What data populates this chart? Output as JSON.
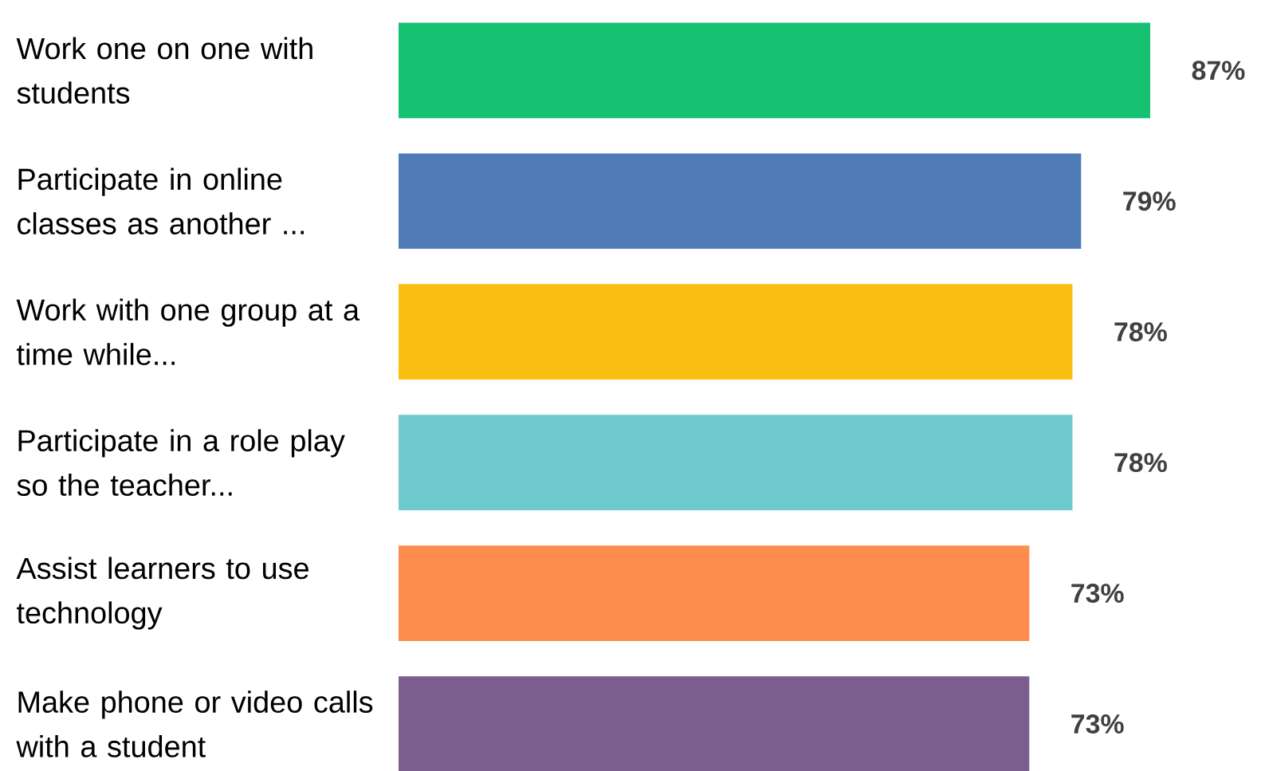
{
  "chart_data": {
    "type": "bar",
    "orientation": "horizontal",
    "categories": [
      "Work one on one with students",
      "Participate in online classes as another ...",
      "Work with one group at a time while...",
      "Participate in a role play so the teacher...",
      "Assist learners to use technology",
      "Make phone or video calls with a student"
    ],
    "values": [
      87,
      79,
      78,
      78,
      73,
      73
    ],
    "value_labels": [
      "87%",
      "79%",
      "78%",
      "78%",
      "73%",
      "73%"
    ],
    "colors": [
      "#16c172",
      "#4f7cb7",
      "#f8bf12",
      "#6ecacd",
      "#ff8c4f",
      "#7b5e8e"
    ]
  }
}
